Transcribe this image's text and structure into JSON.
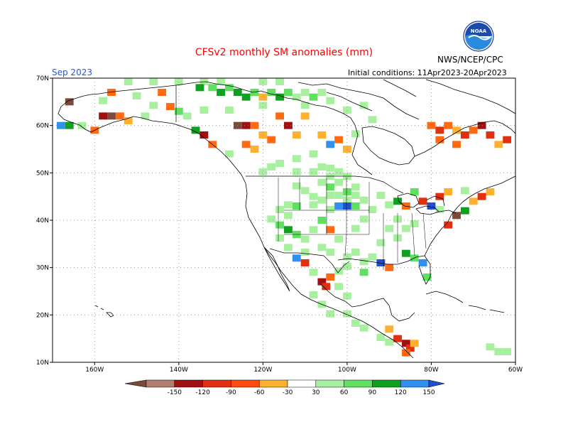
{
  "title": "CFSv2 monthly SM anomalies (mm)",
  "month": "Sep 2023",
  "initial_conditions": "Initial conditions: 11Apr2023-20Apr2023",
  "agency": "NWS/NCEP/CPC",
  "logo_text": "NOAA",
  "map": {
    "projection": "lat-lon",
    "lon_range": [
      -170,
      -60
    ],
    "lat_range": [
      10,
      70
    ],
    "lon_ticks": [
      {
        "value": -160,
        "label": "160W"
      },
      {
        "value": -140,
        "label": "140W"
      },
      {
        "value": -120,
        "label": "120W"
      },
      {
        "value": -100,
        "label": "100W"
      },
      {
        "value": -80,
        "label": "80W"
      },
      {
        "value": -60,
        "label": "60W"
      }
    ],
    "lat_ticks": [
      {
        "value": 70,
        "label": "70N"
      },
      {
        "value": 60,
        "label": "60N"
      },
      {
        "value": 50,
        "label": "50N"
      },
      {
        "value": 40,
        "label": "40N"
      },
      {
        "value": 30,
        "label": "30N"
      },
      {
        "value": 20,
        "label": "20N"
      },
      {
        "value": 10,
        "label": "10N"
      }
    ],
    "grid": "dotted",
    "colors": {
      "le_-150": "#7a4a3a",
      "-150_-120": "#b08070",
      "-120_-90": "#a01010",
      "-90_-60": "#e03010",
      "-60_-30": "#ff6a10",
      "-30_-0": "#ffb030",
      "30_60": "#a8f0a0",
      "60_90": "#60e060",
      "90_120": "#10a020",
      "120_150": "#3090f0",
      "ge_150": "#2050d0"
    }
  },
  "colorbar": {
    "labels": [
      "-150",
      "-120",
      "-90",
      "-60",
      "-30",
      "30",
      "60",
      "90",
      "120",
      "150"
    ],
    "colors": [
      "#7a4a3a",
      "#b08070",
      "#a01010",
      "#e03010",
      "#ff4a10",
      "#ffb030",
      "#ffffff",
      "#a8f0a0",
      "#60e060",
      "#10a020",
      "#3090f0",
      "#2050d0"
    ]
  },
  "anomaly_cells": [
    {
      "lon": -135,
      "lat": 68,
      "cat": "90_120"
    },
    {
      "lon": -132,
      "lat": 68,
      "cat": "60_90"
    },
    {
      "lon": -130,
      "lat": 67,
      "cat": "90_120"
    },
    {
      "lon": -128,
      "lat": 68,
      "cat": "60_90"
    },
    {
      "lon": -126,
      "lat": 67,
      "cat": "90_120"
    },
    {
      "lon": -124,
      "lat": 66,
      "cat": "90_120"
    },
    {
      "lon": -122,
      "lat": 67,
      "cat": "60_90"
    },
    {
      "lon": -120,
      "lat": 66,
      "cat": "-30_-0"
    },
    {
      "lon": -118,
      "lat": 67,
      "cat": "60_90"
    },
    {
      "lon": -116,
      "lat": 66,
      "cat": "90_120"
    },
    {
      "lon": -114,
      "lat": 67,
      "cat": "60_90"
    },
    {
      "lon": -112,
      "lat": 66,
      "cat": "30_60"
    },
    {
      "lon": -110,
      "lat": 67,
      "cat": "30_60"
    },
    {
      "lon": -108,
      "lat": 66,
      "cat": "60_90"
    },
    {
      "lon": -106,
      "lat": 67,
      "cat": "30_60"
    },
    {
      "lon": -138,
      "lat": 62,
      "cat": "30_60"
    },
    {
      "lon": -140,
      "lat": 63,
      "cat": "60_90"
    },
    {
      "lon": -142,
      "lat": 64,
      "cat": "-60_-30"
    },
    {
      "lon": -144,
      "lat": 67,
      "cat": "-60_-30"
    },
    {
      "lon": -156,
      "lat": 67,
      "cat": "-60_-30"
    },
    {
      "lon": -166,
      "lat": 65,
      "cat": "le_-150"
    },
    {
      "lon": -168,
      "lat": 60,
      "cat": "120_150"
    },
    {
      "lon": -166,
      "lat": 60,
      "cat": "90_120"
    },
    {
      "lon": -163,
      "lat": 60,
      "cat": "30_60"
    },
    {
      "lon": -160,
      "lat": 59,
      "cat": "-60_-30"
    },
    {
      "lon": -158,
      "lat": 62,
      "cat": "-120_-90"
    },
    {
      "lon": -156,
      "lat": 62,
      "cat": "le_-150"
    },
    {
      "lon": -154,
      "lat": 62,
      "cat": "-60_-30"
    },
    {
      "lon": -152,
      "lat": 61,
      "cat": "-30_-0"
    },
    {
      "lon": -148,
      "lat": 62,
      "cat": "30_60"
    },
    {
      "lon": -136,
      "lat": 59,
      "cat": "90_120"
    },
    {
      "lon": -134,
      "lat": 58,
      "cat": "-120_-90"
    },
    {
      "lon": -132,
      "lat": 56,
      "cat": "-60_-30"
    },
    {
      "lon": -128,
      "lat": 54,
      "cat": "30_60"
    },
    {
      "lon": -124,
      "lat": 56,
      "cat": "-60_-30"
    },
    {
      "lon": -122,
      "lat": 55,
      "cat": "-30_-0"
    },
    {
      "lon": -126,
      "lat": 60,
      "cat": "le_-150"
    },
    {
      "lon": -124,
      "lat": 60,
      "cat": "-120_-90"
    },
    {
      "lon": -122,
      "lat": 60,
      "cat": "-60_-30"
    },
    {
      "lon": -120,
      "lat": 58,
      "cat": "-30_-0"
    },
    {
      "lon": -118,
      "lat": 57,
      "cat": "-60_-30"
    },
    {
      "lon": -116,
      "lat": 62,
      "cat": "-60_-30"
    },
    {
      "lon": -114,
      "lat": 60,
      "cat": "-120_-90"
    },
    {
      "lon": -112,
      "lat": 58,
      "cat": "-30_-0"
    },
    {
      "lon": -110,
      "lat": 62,
      "cat": "-30_-0"
    },
    {
      "lon": -106,
      "lat": 58,
      "cat": "-30_-0"
    },
    {
      "lon": -104,
      "lat": 56,
      "cat": "120_150"
    },
    {
      "lon": -102,
      "lat": 57,
      "cat": "-60_-30"
    },
    {
      "lon": -100,
      "lat": 55,
      "cat": "-30_-0"
    },
    {
      "lon": -108,
      "lat": 54,
      "cat": "30_60"
    },
    {
      "lon": -112,
      "lat": 53,
      "cat": "30_60"
    },
    {
      "lon": -116,
      "lat": 52,
      "cat": "30_60"
    },
    {
      "lon": -104,
      "lat": 51,
      "cat": "30_60"
    },
    {
      "lon": -106,
      "lat": 48,
      "cat": "30_60"
    },
    {
      "lon": -104,
      "lat": 47,
      "cat": "60_90"
    },
    {
      "lon": -102,
      "lat": 48,
      "cat": "30_60"
    },
    {
      "lon": -100,
      "lat": 46,
      "cat": "60_90"
    },
    {
      "lon": -98,
      "lat": 47,
      "cat": "30_60"
    },
    {
      "lon": -108,
      "lat": 45,
      "cat": "30_60"
    },
    {
      "lon": -102,
      "lat": 43,
      "cat": "120_150"
    },
    {
      "lon": -100,
      "lat": 43,
      "cat": "ge_150"
    },
    {
      "lon": -98,
      "lat": 43,
      "cat": "60_90"
    },
    {
      "lon": -112,
      "lat": 43,
      "cat": "60_90"
    },
    {
      "lon": -114,
      "lat": 41,
      "cat": "30_60"
    },
    {
      "lon": -116,
      "lat": 39,
      "cat": "60_90"
    },
    {
      "lon": -114,
      "lat": 38,
      "cat": "90_120"
    },
    {
      "lon": -112,
      "lat": 37,
      "cat": "60_90"
    },
    {
      "lon": -110,
      "lat": 36,
      "cat": "30_60"
    },
    {
      "lon": -108,
      "lat": 38,
      "cat": "30_60"
    },
    {
      "lon": -106,
      "lat": 40,
      "cat": "60_90"
    },
    {
      "lon": -104,
      "lat": 38,
      "cat": "-60_-30"
    },
    {
      "lon": -102,
      "lat": 36,
      "cat": "30_60"
    },
    {
      "lon": -112,
      "lat": 32,
      "cat": "120_150"
    },
    {
      "lon": -110,
      "lat": 31,
      "cat": "-90_-60"
    },
    {
      "lon": -108,
      "lat": 29,
      "cat": "30_60"
    },
    {
      "lon": -106,
      "lat": 27,
      "cat": "-120_-90"
    },
    {
      "lon": -105,
      "lat": 26,
      "cat": "-90_-60"
    },
    {
      "lon": -104,
      "lat": 28,
      "cat": "-60_-30"
    },
    {
      "lon": -102,
      "lat": 26,
      "cat": "30_60"
    },
    {
      "lon": -100,
      "lat": 24,
      "cat": "30_60"
    },
    {
      "lon": -96,
      "lat": 29,
      "cat": "60_90"
    },
    {
      "lon": -92,
      "lat": 31,
      "cat": "ge_150"
    },
    {
      "lon": -90,
      "lat": 30,
      "cat": "-60_-30"
    },
    {
      "lon": -86,
      "lat": 33,
      "cat": "90_120"
    },
    {
      "lon": -84,
      "lat": 32,
      "cat": "60_90"
    },
    {
      "lon": -82,
      "lat": 31,
      "cat": "120_150"
    },
    {
      "lon": -81,
      "lat": 28,
      "cat": "60_90"
    },
    {
      "lon": -76,
      "lat": 39,
      "cat": "-90_-60"
    },
    {
      "lon": -74,
      "lat": 41,
      "cat": "le_-150"
    },
    {
      "lon": -72,
      "lat": 42,
      "cat": "90_120"
    },
    {
      "lon": -70,
      "lat": 44,
      "cat": "-30_-0"
    },
    {
      "lon": -68,
      "lat": 45,
      "cat": "-90_-60"
    },
    {
      "lon": -66,
      "lat": 46,
      "cat": "-30_-0"
    },
    {
      "lon": -88,
      "lat": 44,
      "cat": "90_120"
    },
    {
      "lon": -86,
      "lat": 43,
      "cat": "-60_-30"
    },
    {
      "lon": -84,
      "lat": 46,
      "cat": "60_90"
    },
    {
      "lon": -82,
      "lat": 44,
      "cat": "-90_-60"
    },
    {
      "lon": -80,
      "lat": 43,
      "cat": "ge_150"
    },
    {
      "lon": -78,
      "lat": 45,
      "cat": "-90_-60"
    },
    {
      "lon": -76,
      "lat": 46,
      "cat": "-30_-0"
    },
    {
      "lon": -80,
      "lat": 60,
      "cat": "-60_-30"
    },
    {
      "lon": -78,
      "lat": 59,
      "cat": "-90_-60"
    },
    {
      "lon": -76,
      "lat": 60,
      "cat": "-60_-30"
    },
    {
      "lon": -74,
      "lat": 59,
      "cat": "-30_-0"
    },
    {
      "lon": -72,
      "lat": 58,
      "cat": "-90_-60"
    },
    {
      "lon": -70,
      "lat": 59,
      "cat": "-60_-30"
    },
    {
      "lon": -68,
      "lat": 60,
      "cat": "-120_-90"
    },
    {
      "lon": -66,
      "lat": 58,
      "cat": "-90_-60"
    },
    {
      "lon": -64,
      "lat": 56,
      "cat": "-30_-0"
    },
    {
      "lon": -62,
      "lat": 57,
      "cat": "-90_-60"
    },
    {
      "lon": -78,
      "lat": 57,
      "cat": "-60_-30"
    },
    {
      "lon": -74,
      "lat": 56,
      "cat": "-60_-30"
    },
    {
      "lon": -88,
      "lat": 15,
      "cat": "-90_-60"
    },
    {
      "lon": -86,
      "lat": 14,
      "cat": "-120_-90"
    },
    {
      "lon": -85,
      "lat": 13,
      "cat": "-90_-60"
    },
    {
      "lon": -86,
      "lat": 12,
      "cat": "-60_-30"
    },
    {
      "lon": -90,
      "lat": 17,
      "cat": "-30_-0"
    },
    {
      "lon": -84,
      "lat": 14,
      "cat": "-30_-0"
    }
  ],
  "light_green_cells": [
    [
      -112,
      50
    ],
    [
      -108,
      50
    ],
    [
      -106,
      51
    ],
    [
      -104,
      49
    ],
    [
      -102,
      50
    ],
    [
      -100,
      49
    ],
    [
      -110,
      46
    ],
    [
      -112,
      47
    ],
    [
      -108,
      43
    ],
    [
      -106,
      44
    ],
    [
      -104,
      45
    ],
    [
      -102,
      45
    ],
    [
      -100,
      44
    ],
    [
      -98,
      45
    ],
    [
      -96,
      44
    ],
    [
      -96,
      40
    ],
    [
      -98,
      38
    ],
    [
      -104,
      42
    ],
    [
      -114,
      43
    ],
    [
      -116,
      42
    ],
    [
      -118,
      40
    ],
    [
      -116,
      36
    ],
    [
      -114,
      34
    ],
    [
      -110,
      33
    ],
    [
      -106,
      34
    ],
    [
      -104,
      33
    ],
    [
      -100,
      32
    ],
    [
      -98,
      33
    ],
    [
      -96,
      31
    ],
    [
      -94,
      32
    ],
    [
      -92,
      35
    ],
    [
      -90,
      38
    ],
    [
      -88,
      36
    ],
    [
      -100,
      30
    ],
    [
      -102,
      29
    ],
    [
      -108,
      24
    ],
    [
      -106,
      22
    ],
    [
      -104,
      20
    ],
    [
      -100,
      20
    ],
    [
      -98,
      18
    ],
    [
      -96,
      17
    ],
    [
      -92,
      15
    ],
    [
      -90,
      14
    ],
    [
      -134,
      69
    ],
    [
      -130,
      69
    ],
    [
      -140,
      69
    ],
    [
      -146,
      69
    ],
    [
      -152,
      69
    ],
    [
      -120,
      69
    ],
    [
      -116,
      69
    ],
    [
      -110,
      64
    ],
    [
      -104,
      65
    ],
    [
      -100,
      63
    ],
    [
      -96,
      64
    ],
    [
      -150,
      66
    ],
    [
      -158,
      65
    ],
    [
      -146,
      64
    ],
    [
      -134,
      63
    ],
    [
      -128,
      63
    ],
    [
      -120,
      64
    ],
    [
      -94,
      61
    ],
    [
      -98,
      58
    ],
    [
      -118,
      51
    ],
    [
      -120,
      50
    ],
    [
      -84,
      39
    ],
    [
      -86,
      38
    ],
    [
      -88,
      40
    ],
    [
      -92,
      45
    ],
    [
      -90,
      43
    ],
    [
      -94,
      42
    ],
    [
      -78,
      42
    ],
    [
      -72,
      46
    ],
    [
      -66,
      13
    ],
    [
      -64,
      12
    ],
    [
      -62,
      12
    ]
  ]
}
